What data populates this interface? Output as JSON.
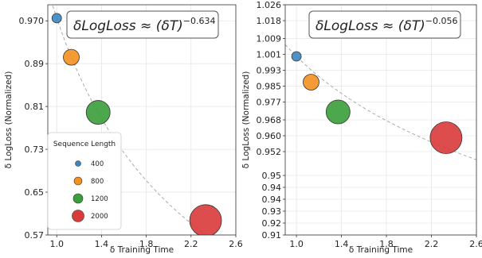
{
  "chart_data": [
    {
      "type": "scatter",
      "xlabel": "δ Training Time",
      "ylabel": "δ LogLoss (Normalized)",
      "xlim": [
        0.92,
        2.6
      ],
      "ylim": [
        0.57,
        1.0
      ],
      "xticks": [
        "1.0",
        "1.4",
        "1.8",
        "2.2",
        "2.6"
      ],
      "yticks": [
        "0.57",
        "0.65",
        "0.73",
        "0.81",
        "0.89",
        "0.970"
      ],
      "grid": true,
      "annotation": {
        "base": "δLogLoss ≈ (δT)",
        "exponent": "−0.634"
      },
      "points": [
        {
          "x": 1.0,
          "y": 0.975,
          "seq": 400,
          "color": "#3b86c1"
        },
        {
          "x": 1.13,
          "y": 0.902,
          "seq": 800,
          "color": "#f39020"
        },
        {
          "x": 1.37,
          "y": 0.799,
          "seq": 1200,
          "color": "#3a9e3a"
        },
        {
          "x": 2.33,
          "y": 0.597,
          "seq": 2000,
          "color": "#d93a3a"
        }
      ],
      "fit": {
        "exponent": -0.634,
        "color": "#aaaaaa",
        "style": "dashed"
      },
      "legend": {
        "title": "Sequence Length",
        "position": "lower-left",
        "entries": [
          {
            "label": "400",
            "color": "#3b86c1"
          },
          {
            "label": "800",
            "color": "#f39020"
          },
          {
            "label": "1200",
            "color": "#3a9e3a"
          },
          {
            "label": "2000",
            "color": "#d93a3a"
          }
        ]
      }
    },
    {
      "type": "scatter",
      "xlabel": "δ Training Time",
      "ylabel": "δ LogLoss (Normalized)",
      "xlim": [
        0.9,
        2.6
      ],
      "ylim": [
        0.91,
        1.026
      ],
      "xticks": [
        "1.0",
        "1.4",
        "1.8",
        "2.2",
        "2.6"
      ],
      "yticks": [
        "0.91",
        "0.92",
        "0.93",
        "0.94",
        "0.94",
        "0.95",
        "0.952",
        "0.960",
        "0.968",
        "0.977",
        "0.985",
        "0.993",
        "1.001",
        "1.009",
        "1.018",
        "1.026"
      ],
      "grid": true,
      "annotation": {
        "base": "δLogLoss ≈ (δT)",
        "exponent": "−0.056"
      },
      "points": [
        {
          "x": 1.0,
          "y": 1.0,
          "seq": 400,
          "color": "#3b86c1"
        },
        {
          "x": 1.13,
          "y": 0.987,
          "seq": 800,
          "color": "#f39020"
        },
        {
          "x": 1.37,
          "y": 0.972,
          "seq": 1200,
          "color": "#3a9e3a"
        },
        {
          "x": 2.33,
          "y": 0.959,
          "seq": 2000,
          "color": "#d93a3a"
        }
      ],
      "fit": {
        "exponent": -0.056,
        "color": "#aaaaaa",
        "style": "dashed"
      }
    }
  ]
}
